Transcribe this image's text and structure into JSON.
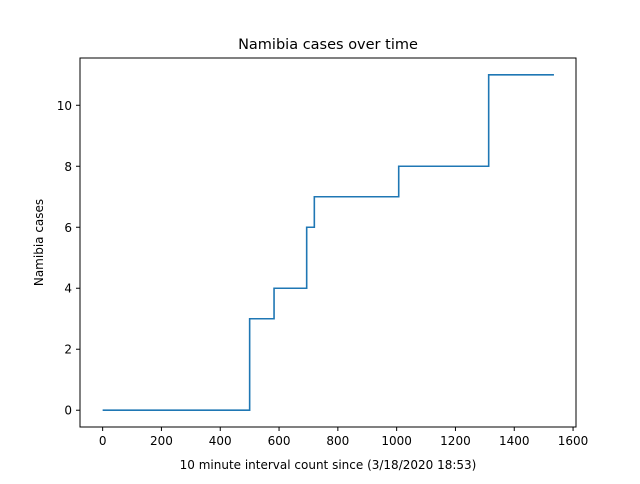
{
  "chart_data": {
    "type": "line",
    "title": "Namibia cases over time",
    "xlabel": "10 minute interval count since (3/18/2020 18:53)",
    "ylabel": "Namibia cases",
    "xlim": [
      -77,
      1610
    ],
    "ylim": [
      -0.55,
      11.55
    ],
    "xticks": [
      0,
      200,
      400,
      600,
      800,
      1000,
      1200,
      1400,
      1600
    ],
    "yticks": [
      0,
      2,
      4,
      6,
      8,
      10
    ],
    "grid": false,
    "step": "post",
    "series": [
      {
        "color": "#1f77b4",
        "x": [
          0,
          500,
          583,
          694,
          720,
          1007,
          1313,
          1535
        ],
        "y": [
          0,
          3,
          4,
          6,
          7,
          8,
          11,
          11
        ]
      }
    ]
  }
}
